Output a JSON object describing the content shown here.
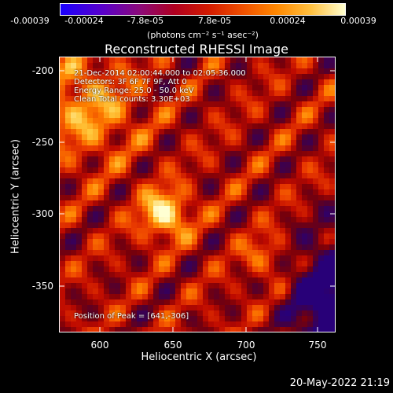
{
  "colorbar": {
    "ticks": [
      "-0.00039",
      "-0.00024",
      "-7.8e-05",
      "7.8e-05",
      "0.00024",
      "0.00039"
    ],
    "unit": "(photons cm⁻² s⁻¹ asec⁻²)"
  },
  "title": "Reconstructed RHESSI Image",
  "annotations": {
    "time": "21-Dec-2014 02:00:44.000 to 02:05:36.000",
    "detectors": "Detectors: 3F 6F 7F 9F, Att 0",
    "energy": "Energy Range: 25.0 - 50.0 keV",
    "counts": "Clean    Total counts: 3.30E+03",
    "peak": "Position of Peak = [641,-306]"
  },
  "axes": {
    "xlabel": "Heliocentric X (arcsec)",
    "ylabel": "Heliocentric Y (arcsec)",
    "xticks": [
      "600",
      "650",
      "700",
      "750"
    ],
    "yticks": [
      "-200",
      "-250",
      "-300",
      "-350"
    ],
    "xrange": [
      571,
      762
    ],
    "yrange": [
      -384,
      -194
    ]
  },
  "footer_date": "20-May-2022 21:19",
  "colors": {
    "background": "#000000",
    "axis": "#ffffff"
  }
}
